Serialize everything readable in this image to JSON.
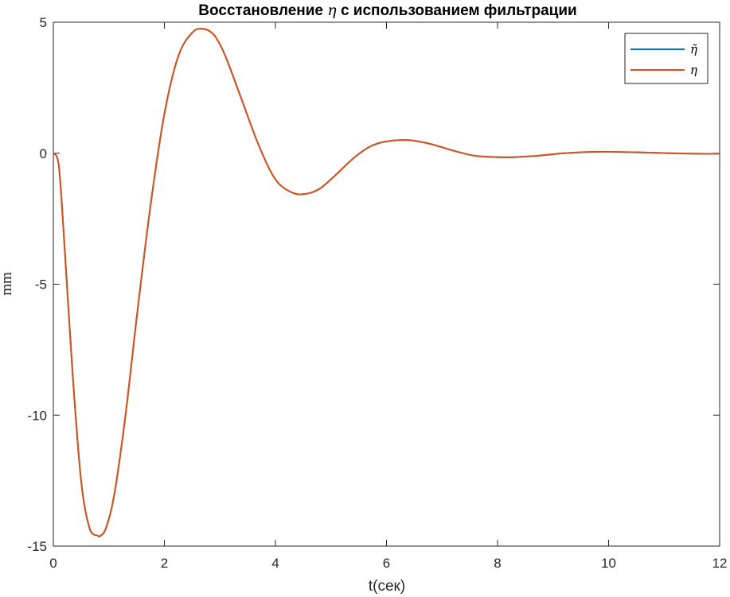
{
  "chart_data": {
    "type": "line",
    "title_prefix": "Восстановление ",
    "title_symbol": "η",
    "title_suffix": " с использованием фильтрации",
    "xlabel": "t(сек)",
    "ylabel": "mm",
    "xlim": [
      0,
      12
    ],
    "ylim": [
      -15,
      5
    ],
    "xticks": [
      0,
      2,
      4,
      6,
      8,
      10,
      12
    ],
    "yticks": [
      -15,
      -10,
      -5,
      0,
      5
    ],
    "grid": false,
    "legend_position": "top-right",
    "series": [
      {
        "name": "η̃",
        "color": "#0072BD",
        "x": [
          0,
          0.1,
          0.2,
          0.35,
          0.5,
          0.65,
          0.8,
          0.85,
          0.95,
          1.1,
          1.3,
          1.5,
          1.75,
          2.0,
          2.25,
          2.5,
          2.7,
          2.9,
          3.1,
          3.4,
          3.7,
          4.0,
          4.3,
          4.55,
          4.8,
          5.1,
          5.4,
          5.7,
          6.0,
          6.4,
          6.8,
          7.2,
          7.6,
          8.0,
          8.3,
          8.7,
          9.2,
          9.7,
          10.1,
          10.6,
          11.1,
          11.6,
          12.0
        ],
        "y": [
          0,
          -0.5,
          -3.5,
          -8.5,
          -12.5,
          -14.3,
          -14.6,
          -14.6,
          -14.3,
          -13.0,
          -10.0,
          -6.3,
          -2.0,
          1.5,
          3.7,
          4.6,
          4.75,
          4.5,
          3.7,
          2.0,
          0.3,
          -1.0,
          -1.5,
          -1.55,
          -1.35,
          -0.8,
          -0.2,
          0.25,
          0.45,
          0.5,
          0.35,
          0.1,
          -0.1,
          -0.15,
          -0.15,
          -0.1,
          0.0,
          0.05,
          0.05,
          0.03,
          0.0,
          -0.02,
          -0.02
        ]
      },
      {
        "name": "η",
        "color": "#D95319",
        "x": [
          0,
          0.1,
          0.2,
          0.35,
          0.5,
          0.65,
          0.8,
          0.85,
          0.95,
          1.1,
          1.3,
          1.5,
          1.75,
          2.0,
          2.25,
          2.5,
          2.7,
          2.9,
          3.1,
          3.4,
          3.7,
          4.0,
          4.3,
          4.55,
          4.8,
          5.1,
          5.4,
          5.7,
          6.0,
          6.4,
          6.8,
          7.2,
          7.6,
          8.0,
          8.3,
          8.7,
          9.2,
          9.7,
          10.1,
          10.6,
          11.1,
          11.6,
          12.0
        ],
        "y": [
          0,
          -0.5,
          -3.5,
          -8.5,
          -12.5,
          -14.3,
          -14.6,
          -14.6,
          -14.3,
          -13.0,
          -10.0,
          -6.3,
          -2.0,
          1.5,
          3.7,
          4.6,
          4.75,
          4.5,
          3.7,
          2.0,
          0.3,
          -1.0,
          -1.5,
          -1.55,
          -1.35,
          -0.8,
          -0.2,
          0.25,
          0.45,
          0.5,
          0.35,
          0.1,
          -0.1,
          -0.15,
          -0.15,
          -0.1,
          0.0,
          0.05,
          0.05,
          0.03,
          0.0,
          -0.02,
          -0.02
        ]
      }
    ]
  }
}
